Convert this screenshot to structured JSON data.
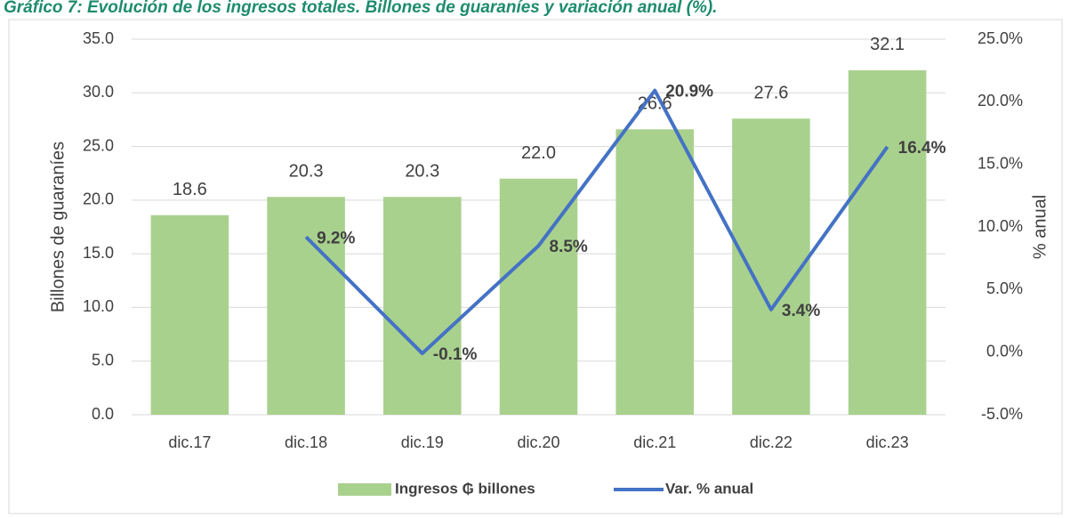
{
  "chart_data": {
    "type": "bar_line",
    "title": "Gráfico 7: Evolución de los ingresos totales. Billones de guaraníes y variación anual (%).",
    "y_label": "Billones de guaraníes",
    "y2_label": "% anual",
    "categories": [
      "dic.17",
      "dic.18",
      "dic.19",
      "dic.20",
      "dic.21",
      "dic.22",
      "dic.23"
    ],
    "series": [
      {
        "name": "Ingresos ₲ billones",
        "type": "bar",
        "color": "#a9d18e",
        "values": [
          18.6,
          20.3,
          20.3,
          22.0,
          26.6,
          27.6,
          32.1
        ],
        "value_labels": [
          "18.6",
          "20.3",
          "20.3",
          "22.0",
          "26.6",
          "27.6",
          "32.1"
        ]
      },
      {
        "name": "Var. % anual",
        "type": "line",
        "axis": "y2",
        "color": "#4472c4",
        "values": [
          null,
          9.2,
          -0.1,
          8.5,
          20.9,
          3.4,
          16.4
        ],
        "value_labels": [
          null,
          "9.2%",
          "-0.1%",
          "8.5%",
          "20.9%",
          "3.4%",
          "16.4%"
        ]
      }
    ],
    "ylim": [
      0,
      35
    ],
    "yticks": [
      {
        "value": 0,
        "label": "0.0"
      },
      {
        "value": 5,
        "label": "5.0"
      },
      {
        "value": 10,
        "label": "10.0"
      },
      {
        "value": 15,
        "label": "15.0"
      },
      {
        "value": 20,
        "label": "20.0"
      },
      {
        "value": 25,
        "label": "25.0"
      },
      {
        "value": 30,
        "label": "30.0"
      },
      {
        "value": 35,
        "label": "35.0"
      }
    ],
    "y2lim": [
      -5,
      25
    ],
    "y2ticks": [
      {
        "value": -5,
        "label": "-5.0%"
      },
      {
        "value": 0,
        "label": "0.0%"
      },
      {
        "value": 5,
        "label": "5.0%"
      },
      {
        "value": 10,
        "label": "10.0%"
      },
      {
        "value": 15,
        "label": "15.0%"
      },
      {
        "value": 20,
        "label": "20.0%"
      },
      {
        "value": 25,
        "label": "25.0%"
      }
    ],
    "grid": true,
    "legend": "bottom"
  }
}
